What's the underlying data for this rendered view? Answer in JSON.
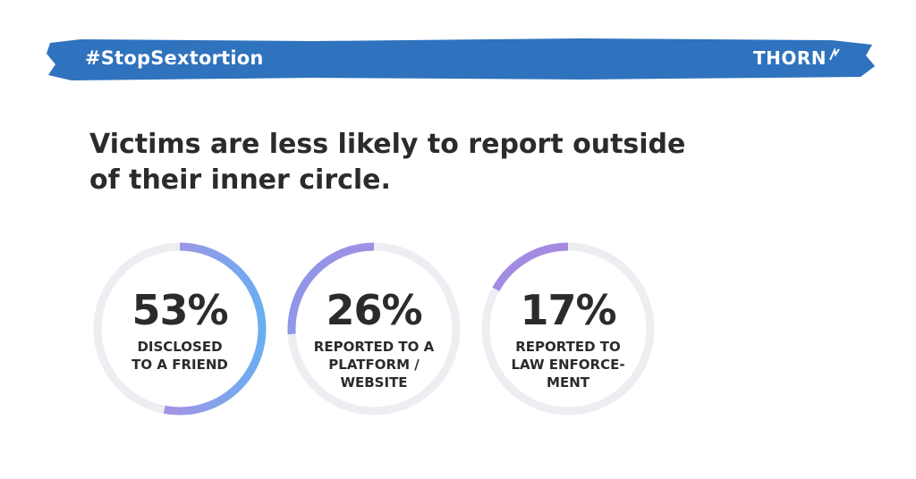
{
  "banner": {
    "hashtag": "#StopSextortion",
    "brand": "THORN",
    "color": "#2f72bd"
  },
  "headline": "Victims are less likely to report outside of their inner circle.",
  "stats": [
    {
      "percent_label": "53%",
      "value": 53,
      "label": "DISCLOSED\nTO A FRIEND"
    },
    {
      "percent_label": "26%",
      "value": 26,
      "label": "REPORTED TO A\nPLATFORM /\nWEBSITE"
    },
    {
      "percent_label": "17%",
      "value": 17,
      "label": "REPORTED TO\nLAW ENFORCE-\nMENT"
    }
  ],
  "colors": {
    "track": "#eceef2",
    "gradient_start": "#cf7fdc",
    "gradient_end": "#6aaef0",
    "text": "#2b2b2b"
  }
}
